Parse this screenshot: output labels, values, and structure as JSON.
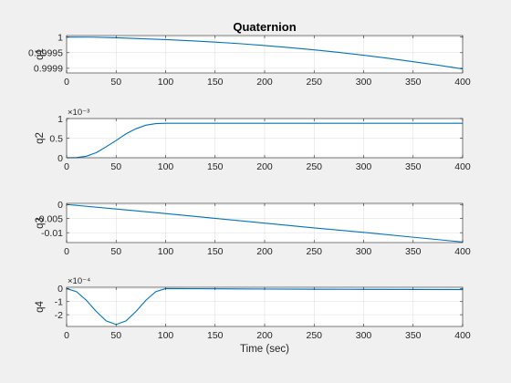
{
  "figure": {
    "background": "#f0f0f0",
    "axes_background": "#ffffff",
    "line_color": "#0072bd",
    "grid_color": "#dcdcdc"
  },
  "chart_data": [
    {
      "type": "line",
      "title": "Quaternion",
      "ylabel": "q1",
      "xlabel": "",
      "xlim": [
        0,
        400
      ],
      "ylim": [
        0.999885,
        1.000005
      ],
      "xticks": [
        0,
        50,
        100,
        150,
        200,
        250,
        300,
        350,
        400
      ],
      "xtick_labels": [
        "0",
        "50",
        "100",
        "150",
        "200",
        "250",
        "300",
        "350",
        "400"
      ],
      "yticks": [
        0.9999,
        0.99995,
        1
      ],
      "ytick_labels": [
        "0.9999",
        "0.99995",
        "1"
      ],
      "exponent_label": "",
      "grid": true,
      "series": [
        {
          "x": [
            0,
            25,
            50,
            75,
            100,
            125,
            150,
            175,
            200,
            225,
            250,
            275,
            300,
            325,
            350,
            375,
            400
          ],
          "y": [
            1.0,
            0.9999999,
            0.999998,
            0.999995,
            0.999992,
            0.9999885,
            0.999984,
            0.999979,
            0.999973,
            0.9999665,
            0.999959,
            0.999951,
            0.999942,
            0.999932,
            0.999921,
            0.99991,
            0.999898
          ]
        }
      ]
    },
    {
      "type": "line",
      "title": "",
      "ylabel": "q2",
      "xlabel": "",
      "xlim": [
        0,
        400
      ],
      "ylim": [
        0,
        1
      ],
      "xticks": [
        0,
        50,
        100,
        150,
        200,
        250,
        300,
        350,
        400
      ],
      "xtick_labels": [
        "0",
        "50",
        "100",
        "150",
        "200",
        "250",
        "300",
        "350",
        "400"
      ],
      "yticks": [
        0,
        0.5,
        1
      ],
      "ytick_labels": [
        "0",
        "0.5",
        "1"
      ],
      "exponent_label": "×10⁻³",
      "grid": true,
      "series": [
        {
          "x": [
            0,
            10,
            20,
            30,
            40,
            50,
            60,
            70,
            80,
            90,
            100,
            150,
            200,
            250,
            300,
            350,
            400
          ],
          "y": [
            0,
            0.005,
            0.04,
            0.13,
            0.28,
            0.44,
            0.61,
            0.74,
            0.83,
            0.87,
            0.88,
            0.88,
            0.88,
            0.88,
            0.88,
            0.88,
            0.88
          ]
        }
      ]
    },
    {
      "type": "line",
      "title": "",
      "ylabel": "q3",
      "xlabel": "",
      "xlim": [
        0,
        400
      ],
      "ylim": [
        -0.0135,
        0.0004
      ],
      "xticks": [
        0,
        50,
        100,
        150,
        200,
        250,
        300,
        350,
        400
      ],
      "xtick_labels": [
        "0",
        "50",
        "100",
        "150",
        "200",
        "250",
        "300",
        "350",
        "400"
      ],
      "yticks": [
        -0.01,
        -0.005,
        0
      ],
      "ytick_labels": [
        "-0.01",
        "-0.005",
        "0"
      ],
      "exponent_label": "",
      "grid": true,
      "series": [
        {
          "x": [
            0,
            50,
            100,
            150,
            200,
            250,
            300,
            350,
            400
          ],
          "y": [
            0,
            -0.0016,
            -0.0032,
            -0.0049,
            -0.0066,
            -0.0083,
            -0.0099,
            -0.0116,
            -0.0133
          ]
        }
      ]
    },
    {
      "type": "line",
      "title": "",
      "ylabel": "q4",
      "xlabel": "Time (sec)",
      "xlim": [
        0,
        400
      ],
      "ylim": [
        -2.9,
        0.1
      ],
      "xticks": [
        0,
        50,
        100,
        150,
        200,
        250,
        300,
        350,
        400
      ],
      "xtick_labels": [
        "0",
        "50",
        "100",
        "150",
        "200",
        "250",
        "300",
        "350",
        "400"
      ],
      "yticks": [
        -2,
        -1,
        0
      ],
      "ytick_labels": [
        "-2",
        "-1",
        "0"
      ],
      "exponent_label": "×10⁻⁴",
      "grid": true,
      "series": [
        {
          "x": [
            0,
            10,
            20,
            30,
            40,
            50,
            60,
            70,
            80,
            90,
            100,
            150,
            200,
            250,
            300,
            350,
            400
          ],
          "y": [
            0,
            -0.24,
            -0.9,
            -1.76,
            -2.47,
            -2.75,
            -2.47,
            -1.76,
            -0.9,
            -0.24,
            0,
            -0.02,
            -0.04,
            -0.05,
            -0.06,
            -0.07,
            -0.08
          ]
        }
      ]
    }
  ]
}
